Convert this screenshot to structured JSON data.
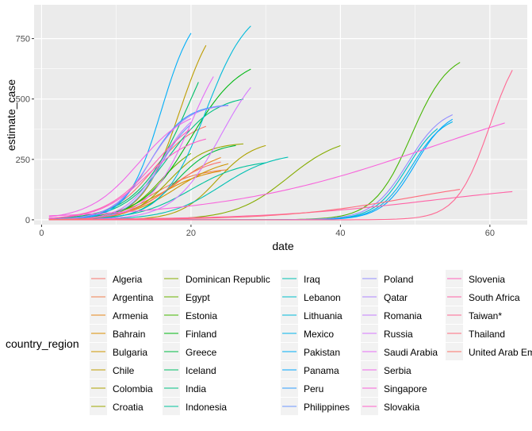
{
  "chart_data": {
    "type": "line",
    "title": "",
    "xlabel": "date",
    "ylabel": "estimate_case",
    "xlim": [
      -1,
      65
    ],
    "ylim": [
      -20,
      890
    ],
    "x_ticks": [
      0,
      20,
      40,
      60
    ],
    "y_ticks": [
      0,
      250,
      500,
      750
    ],
    "x_tick_labels": [
      "0",
      "20",
      "40",
      "60"
    ],
    "y_tick_labels": [
      "0",
      "250",
      "500",
      "750"
    ],
    "grid": true,
    "legend": {
      "title": "country_region",
      "placement": "bottom",
      "columns": 5
    },
    "series": [
      {
        "name": "Algeria",
        "color": "#F8766D",
        "x0": 1,
        "x1": 22,
        "L": 420,
        "x_mid": 15,
        "k": 0.35
      },
      {
        "name": "Argentina",
        "color": "#F07E4D",
        "x0": 1,
        "x1": 25,
        "L": 215,
        "x_mid": 15,
        "k": 0.33
      },
      {
        "name": "Armenia",
        "color": "#E7861B",
        "x0": 1,
        "x1": 24,
        "L": 300,
        "x_mid": 18,
        "k": 0.3
      },
      {
        "name": "Bahrain",
        "color": "#DB8E00",
        "x0": 1,
        "x1": 24,
        "L": 220,
        "x_mid": 16,
        "k": 0.3
      },
      {
        "name": "Bulgaria",
        "color": "#CD9600",
        "x0": 1,
        "x1": 25,
        "L": 260,
        "x_mid": 18,
        "k": 0.3
      },
      {
        "name": "Chile",
        "color": "#BE9C00",
        "x0": 1,
        "x1": 22,
        "L": 900,
        "x_mid": 18.5,
        "k": 0.4
      },
      {
        "name": "Colombia",
        "color": "#AEA200",
        "x0": 1,
        "x1": 30,
        "L": 330,
        "x_mid": 23.5,
        "k": 0.4
      },
      {
        "name": "Croatia",
        "color": "#9CA700",
        "x0": 1,
        "x1": 27,
        "L": 320,
        "x_mid": 17,
        "k": 0.4
      },
      {
        "name": "Dominican Republic",
        "color": "#86AC00",
        "x0": 1,
        "x1": 40,
        "L": 350,
        "x_mid": 33,
        "k": 0.28
      },
      {
        "name": "Egypt",
        "color": "#6BB100",
        "x0": 1,
        "x1": 20,
        "L": 330,
        "x_mid": 16,
        "k": 0.4
      },
      {
        "name": "Estonia",
        "color": "#44B500",
        "x0": 1,
        "x1": 56,
        "L": 700,
        "x_mid": 49.5,
        "k": 0.4
      },
      {
        "name": "Finland",
        "color": "#00B813",
        "x0": 1,
        "x1": 28,
        "L": 680,
        "x_mid": 20,
        "k": 0.3
      },
      {
        "name": "Greece",
        "color": "#00BB44",
        "x0": 1,
        "x1": 26,
        "L": 320,
        "x_mid": 18,
        "k": 0.4
      },
      {
        "name": "Iceland",
        "color": "#00BE67",
        "x0": 1,
        "x1": 21,
        "L": 1000,
        "x_mid": 20,
        "k": 0.28
      },
      {
        "name": "India",
        "color": "#00C083",
        "x0": 1,
        "x1": 27,
        "L": 520,
        "x_mid": 17,
        "k": 0.32
      },
      {
        "name": "Indonesia",
        "color": "#00C19C",
        "x0": 1,
        "x1": 30,
        "L": 250,
        "x_mid": 20,
        "k": 0.28
      },
      {
        "name": "Iraq",
        "color": "#00C0B3",
        "x0": 1,
        "x1": 33,
        "L": 280,
        "x_mid": 24,
        "k": 0.28
      },
      {
        "name": "Lebanon",
        "color": "#00BEC8",
        "x0": 1,
        "x1": 53,
        "L": 440,
        "x_mid": 49,
        "k": 0.45
      },
      {
        "name": "Lithuania",
        "color": "#00BADA",
        "x0": 1,
        "x1": 28,
        "L": 900,
        "x_mid": 22,
        "k": 0.35
      },
      {
        "name": "Mexico",
        "color": "#00B4EA",
        "x0": 1,
        "x1": 55,
        "L": 440,
        "x_mid": 49.5,
        "k": 0.45
      },
      {
        "name": "Pakistan",
        "color": "#00AEF8",
        "x0": 1,
        "x1": 20,
        "L": 900,
        "x_mid": 16,
        "k": 0.45
      },
      {
        "name": "Panama",
        "color": "#00A7FF",
        "x0": 1,
        "x1": 55,
        "L": 460,
        "x_mid": 50,
        "k": 0.45
      },
      {
        "name": "Peru",
        "color": "#2D9EFF",
        "x0": 1,
        "x1": 25,
        "L": 480,
        "x_mid": 14.5,
        "k": 0.42
      },
      {
        "name": "Philippines",
        "color": "#6C96FF",
        "x0": 1,
        "x1": 20,
        "L": 460,
        "x_mid": 16,
        "k": 0.45
      },
      {
        "name": "Poland",
        "color": "#928DFF",
        "x0": 1,
        "x1": 55,
        "L": 470,
        "x_mid": 49,
        "k": 0.42
      },
      {
        "name": "Qatar",
        "color": "#AE87FF",
        "x0": 1,
        "x1": 25,
        "L": 480,
        "x_mid": 14.5,
        "k": 0.4
      },
      {
        "name": "Romania",
        "color": "#C47FFF",
        "x0": 1,
        "x1": 20,
        "L": 480,
        "x_mid": 16,
        "k": 0.42
      },
      {
        "name": "Russia",
        "color": "#D677FF",
        "x0": 1,
        "x1": 28,
        "L": 700,
        "x_mid": 24,
        "k": 0.32
      },
      {
        "name": "Saudi Arabia",
        "color": "#E56FF6",
        "x0": 1,
        "x1": 23,
        "L": 800,
        "x_mid": 20,
        "k": 0.35
      },
      {
        "name": "Serbia",
        "color": "#F067E9",
        "x0": 1,
        "x1": 20,
        "L": 470,
        "x_mid": 13,
        "k": 0.3
      },
      {
        "name": "Singapore",
        "color": "#F863DB",
        "x0": 1,
        "x1": 62,
        "L": 600,
        "x_mid": 52,
        "k": 0.07
      },
      {
        "name": "Slovakia",
        "color": "#FD61CB",
        "x0": 1,
        "x1": 22,
        "L": 360,
        "x_mid": 14,
        "k": 0.32
      },
      {
        "name": "Slovenia",
        "color": "#FF61B9",
        "x0": 1,
        "x1": 20,
        "L": 460,
        "x_mid": 15,
        "k": 0.3
      },
      {
        "name": "South Africa",
        "color": "#FF63A6",
        "x0": 1,
        "x1": 63,
        "L": 160,
        "x_mid": 52,
        "k": 0.09
      },
      {
        "name": "Taiwan*",
        "color": "#FF6792",
        "x0": 1,
        "x1": 63,
        "L": 780,
        "x_mid": 60,
        "k": 0.45
      },
      {
        "name": "Thailand",
        "color": "#FF6C7D",
        "x0": 1,
        "x1": 56,
        "L": 180,
        "x_mid": 49,
        "k": 0.12
      },
      {
        "name": "United Arab Emirates",
        "color": "#FC7268",
        "x0": 1,
        "x1": 24,
        "L": 260,
        "x_mid": 17,
        "k": 0.35
      }
    ]
  }
}
